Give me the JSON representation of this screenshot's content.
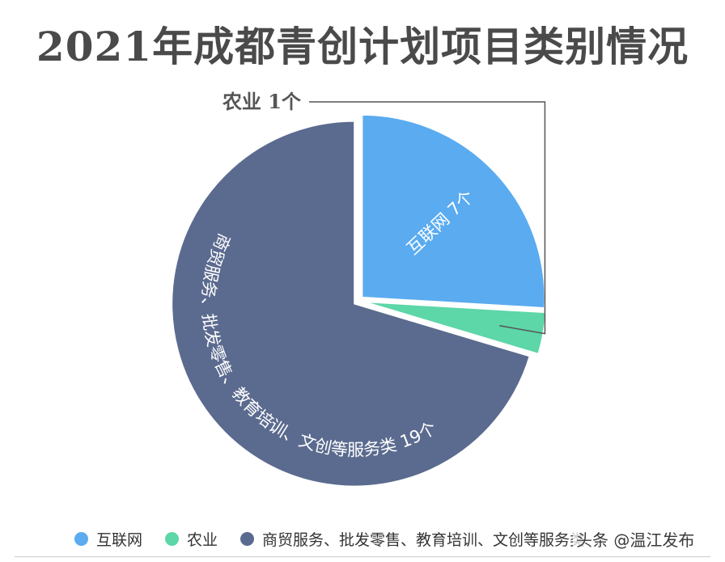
{
  "chart_data": {
    "type": "pie",
    "title": "2021年成都青创计划项目类别情况",
    "slices": [
      {
        "name": "互联网",
        "value": 7,
        "label": "互联网 7个",
        "color": "#5aabf0"
      },
      {
        "name": "农业",
        "value": 1,
        "label": "农业 1个",
        "color": "#5dd6a8"
      },
      {
        "name": "商贸服务、批发零售、教育培训、文创等服务类",
        "value": 19,
        "label": "商贸服务、批发零售、教育培训、文创等服务类 19个",
        "color": "#5b6b8f"
      }
    ],
    "legend": {
      "position": "bottom",
      "items": [
        "互联网",
        "农业",
        "商贸服务、批发零售、教育培训、文创等服务类"
      ]
    }
  },
  "watermark": "头条 @温江发布"
}
